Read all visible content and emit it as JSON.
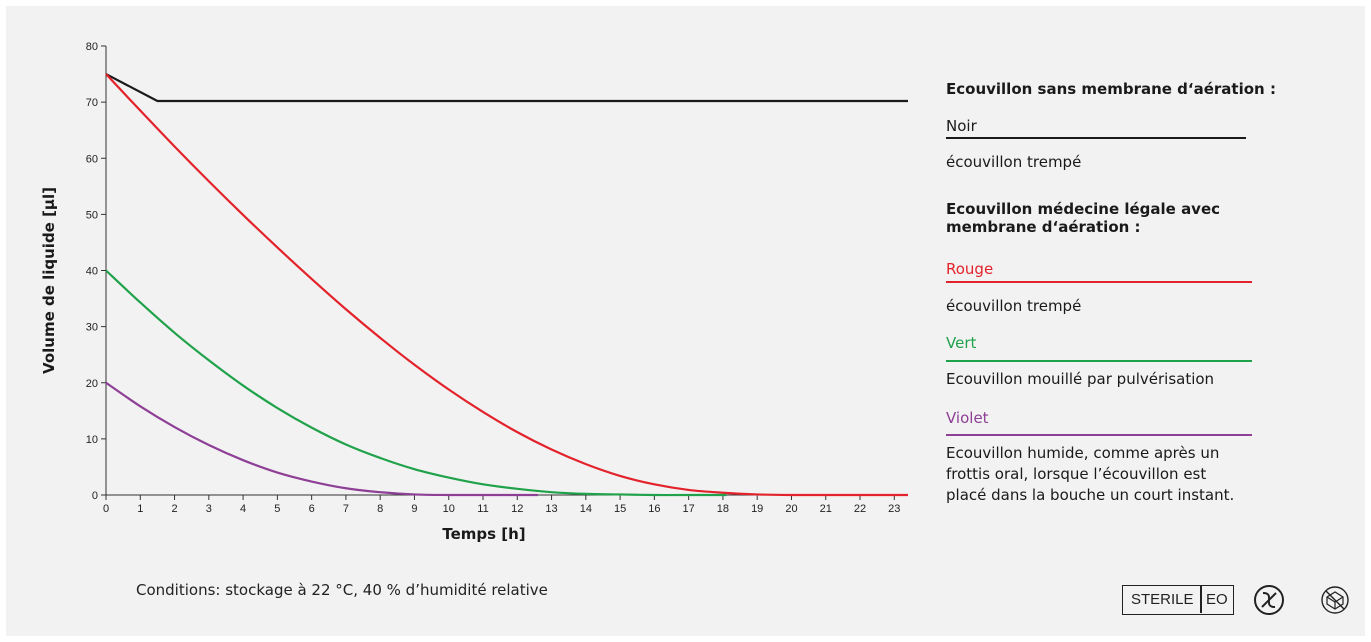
{
  "chart_data": {
    "type": "line",
    "xlabel": "Temps [h]",
    "ylabel": "Volume de liquide [µl]",
    "xlim": [
      0,
      23.4
    ],
    "ylim": [
      0,
      80
    ],
    "xticks": [
      0,
      1,
      2,
      3,
      4,
      5,
      6,
      7,
      8,
      9,
      10,
      11,
      12,
      13,
      14,
      15,
      16,
      17,
      18,
      19,
      20,
      21,
      22,
      23
    ],
    "yticks": [
      0,
      10,
      20,
      30,
      40,
      50,
      60,
      70,
      80
    ],
    "grid": false,
    "legend": "right",
    "series": [
      {
        "name": "Noir",
        "color": "#1a1a1a",
        "x": [
          0,
          1.5,
          23.4
        ],
        "y": [
          75,
          70.2,
          70.2
        ]
      },
      {
        "name": "Rouge",
        "color": "#e3232b",
        "x": [
          0,
          1,
          2,
          3,
          4,
          5,
          6,
          7,
          8,
          9,
          10,
          11,
          12,
          13,
          14,
          15,
          16,
          17,
          18,
          19,
          20,
          21,
          22,
          23,
          23.4
        ],
        "y": [
          75,
          68.5,
          62.1,
          55.9,
          49.9,
          44.1,
          38.5,
          33.1,
          28.0,
          23.2,
          18.8,
          14.8,
          11.2,
          8.1,
          5.5,
          3.4,
          1.9,
          0.9,
          0.4,
          0.1,
          0,
          0,
          0,
          0,
          0
        ]
      },
      {
        "name": "Vert",
        "color": "#1fa24a",
        "x": [
          0,
          1,
          2,
          3,
          4,
          5,
          6,
          7,
          8,
          9,
          10,
          11,
          12,
          13,
          14,
          15,
          16,
          17,
          18.1
        ],
        "y": [
          40,
          34.3,
          28.9,
          24.0,
          19.5,
          15.5,
          12.0,
          9.0,
          6.6,
          4.6,
          3.1,
          1.9,
          1.1,
          0.5,
          0.2,
          0.1,
          0,
          0,
          0
        ]
      },
      {
        "name": "Violet",
        "color": "#8e3f96",
        "x": [
          0,
          1,
          2,
          3,
          4,
          5,
          6,
          7,
          8,
          9,
          10,
          11,
          12,
          12.6
        ],
        "y": [
          20,
          15.8,
          12.1,
          8.9,
          6.2,
          4.0,
          2.4,
          1.2,
          0.5,
          0.1,
          0,
          0,
          0,
          0
        ]
      }
    ]
  },
  "legend": {
    "heading1": "Ecouvillon sans membrane d‘aération :",
    "heading2": "Ecouvillon médecine légale avec membrane d‘aération :",
    "items": [
      {
        "label": "Noir",
        "color": "#1a1a1a",
        "desc": "écouvillon trempé"
      },
      {
        "label": "Rouge",
        "color": "#e3232b",
        "desc": "écouvillon trempé"
      },
      {
        "label": "Vert",
        "color": "#1fa24a",
        "desc": "Ecouvillon mouillé par pulvérisation"
      },
      {
        "label": "Violet",
        "color": "#8e3f96",
        "desc": "Ecouvillon humide, comme après un frottis oral, lorsque l’écouvillon est placé dans la bouche un court instant."
      }
    ]
  },
  "footnote": "Conditions: stockage à 22 °C, 40 % d’humidité relative",
  "symbols": {
    "sterile_label": "STERILE",
    "method_label": "EO",
    "icons": [
      "do-not-reuse-icon",
      "do-not-use-if-damaged-icon"
    ]
  }
}
